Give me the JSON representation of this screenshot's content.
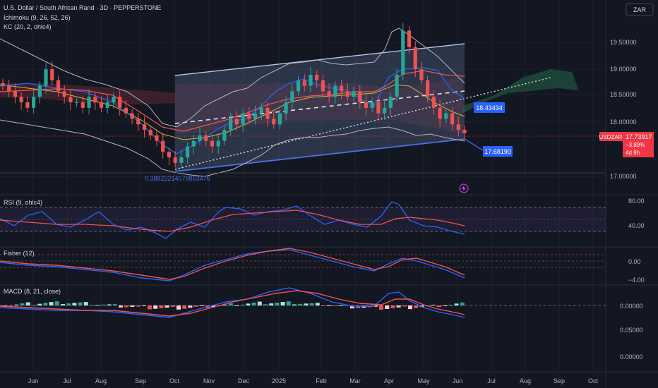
{
  "header": {
    "symbol_line": "U.S. Dollar / South African Rand · 3D · PEPPERSTONE",
    "indicators": [
      "Ichimoku (9, 26, 52, 26)",
      "KC (20, 2, ohlc4)"
    ],
    "currency_button": "ZAR"
  },
  "panes": {
    "rsi_title": "RSI (9, ohlc4)",
    "fisher_title": "Fisher (12)",
    "macd_title": "MACD (8, 21, close)"
  },
  "price_axis": {
    "ticks": [
      "19.50000",
      "19.00000",
      "18.50000",
      "18.00000",
      "17.00000"
    ]
  },
  "rsi_axis": {
    "ticks": [
      "80.00",
      "40.00"
    ]
  },
  "fisher_axis": {
    "ticks": [
      "0.00",
      "−4.00"
    ]
  },
  "macd_axis": {
    "ticks": [
      "0.00000",
      "0.05000",
      "0.00000"
    ]
  },
  "time_axis": {
    "labels": [
      "Jun",
      "Jul",
      "Aug",
      "Sep",
      "Oct",
      "Nov",
      "Dec",
      "2025",
      "Feb",
      "Mar",
      "Apr",
      "May",
      "Jun",
      "Jul",
      "Aug",
      "Sep",
      "Oct"
    ]
  },
  "labels": {
    "fib_value": "0.38822214579853476",
    "channel_mid_price": "18.43434",
    "channel_low_price": "17.68190",
    "symbol_tag": "USDZAR",
    "last_price": "17.73917",
    "change_pct": "−3.89%",
    "countdown": "4d 9h"
  },
  "colors": {
    "bull": "#26a69a",
    "bear": "#ef5350",
    "channel_line": "#4a6fe3",
    "price_tag": "#f23645",
    "label_blue": "#2962ff",
    "cloud_green": "#1f4a3b",
    "cloud_red": "#4a2430"
  },
  "chart_data": {
    "type": "candlestick",
    "symbol": "USDZAR",
    "timeframe": "3D",
    "x_range": [
      "2024-05",
      "2025-10"
    ],
    "ylim": [
      16.7,
      19.9
    ],
    "closes_approx": [
      18.6,
      18.5,
      18.4,
      18.3,
      18.2,
      18.4,
      18.6,
      18.9,
      18.7,
      18.5,
      18.4,
      18.3,
      18.3,
      18.2,
      18.4,
      18.3,
      18.2,
      18.3,
      18.4,
      18.2,
      18.1,
      18.0,
      17.9,
      17.8,
      17.7,
      17.6,
      17.4,
      17.3,
      17.2,
      17.3,
      17.5,
      17.6,
      17.7,
      17.6,
      17.5,
      17.6,
      17.8,
      18.0,
      17.9,
      18.1,
      18.0,
      18.1,
      18.2,
      18.0,
      17.9,
      18.1,
      18.3,
      18.5,
      18.7,
      18.6,
      18.8,
      18.7,
      18.5,
      18.4,
      18.6,
      18.5,
      18.4,
      18.5,
      18.3,
      18.2,
      18.3,
      18.1,
      18.2,
      18.4,
      18.8,
      19.6,
      19.3,
      18.9,
      18.7,
      18.4,
      18.2,
      18.0,
      18.1,
      17.9,
      17.8,
      17.74
    ],
    "annotations": {
      "channel_high_price": 19.5,
      "channel_mid_price": 18.43434,
      "channel_low_price": 17.6819,
      "fib_value": "0.38822214579853476",
      "last_price": 17.73917,
      "change_pct": -3.89
    }
  }
}
